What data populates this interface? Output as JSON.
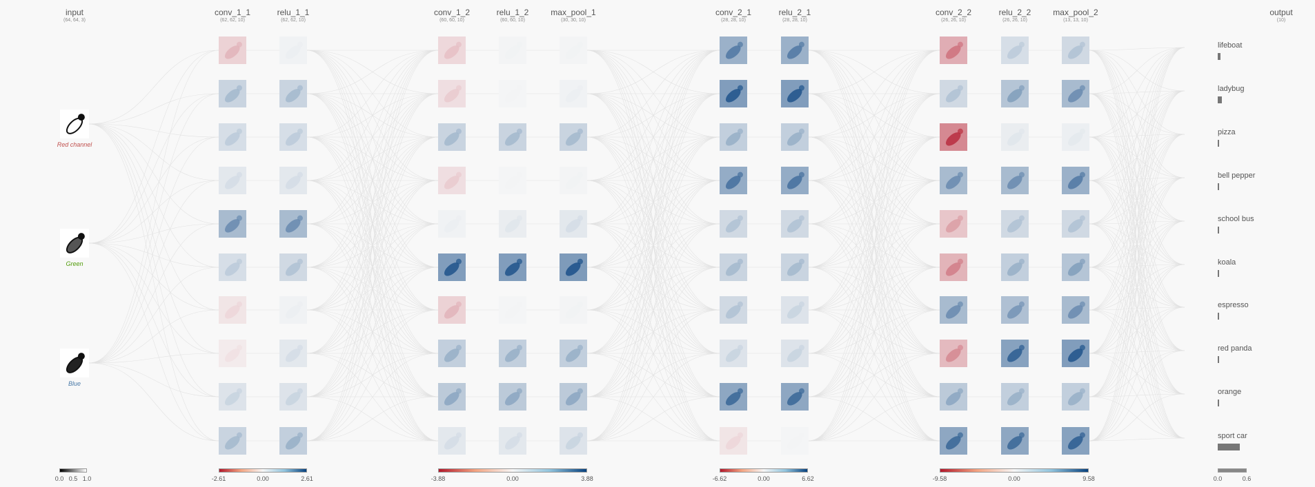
{
  "input": {
    "name": "input",
    "shape": "(64, 64, 3)",
    "channels": [
      {
        "label": "Red channel",
        "color": "#c0504d"
      },
      {
        "label": "Green",
        "color": "#4e9a06"
      },
      {
        "label": "Blue",
        "color": "#4a7aa8"
      }
    ],
    "legend": {
      "ticks": [
        "0.0",
        "0.5",
        "1.0"
      ]
    }
  },
  "layers": [
    {
      "name": "conv_1_1",
      "shape": "(62, 62, 10)",
      "values": [
        -0.3,
        0.35,
        0.25,
        0.15,
        0.6,
        0.25,
        -0.15,
        -0.1,
        0.2,
        0.35
      ]
    },
    {
      "name": "relu_1_1",
      "shape": "(62, 62, 10)",
      "values": [
        0.05,
        0.35,
        0.25,
        0.15,
        0.6,
        0.3,
        0.05,
        0.15,
        0.2,
        0.4
      ]
    },
    {
      "name": "conv_1_2",
      "shape": "(60, 60, 10)",
      "values": [
        -0.25,
        -0.2,
        0.35,
        -0.2,
        0.05,
        0.9,
        -0.3,
        0.4,
        0.45,
        0.15
      ]
    },
    {
      "name": "relu_1_2",
      "shape": "(60, 60, 10)",
      "values": [
        0.03,
        0.02,
        0.35,
        0.02,
        0.1,
        0.9,
        0.02,
        0.4,
        0.45,
        0.15
      ]
    },
    {
      "name": "max_pool_1",
      "shape": "(30, 30, 10)",
      "values": [
        0.03,
        0.05,
        0.35,
        0.03,
        0.15,
        0.92,
        0.03,
        0.4,
        0.45,
        0.2
      ]
    },
    {
      "name": "conv_2_1",
      "shape": "(28, 28, 10)",
      "values": [
        0.7,
        0.9,
        0.4,
        0.75,
        0.3,
        0.35,
        0.3,
        0.2,
        0.8,
        -0.15
      ]
    },
    {
      "name": "relu_2_1",
      "shape": "(28, 28, 10)",
      "values": [
        0.7,
        0.9,
        0.4,
        0.75,
        0.3,
        0.35,
        0.2,
        0.2,
        0.8,
        0.02
      ]
    },
    {
      "name": "conv_2_2",
      "shape": "(26, 26, 10)",
      "values": [
        -0.6,
        0.3,
        -0.9,
        0.6,
        -0.4,
        -0.55,
        0.6,
        -0.5,
        0.45,
        0.8
      ]
    },
    {
      "name": "relu_2_2",
      "shape": "(26, 26, 10)",
      "values": [
        0.25,
        0.5,
        0.1,
        0.6,
        0.3,
        0.4,
        0.55,
        0.85,
        0.4,
        0.8
      ]
    },
    {
      "name": "max_pool_2",
      "shape": "(13, 13, 10)",
      "values": [
        0.3,
        0.6,
        0.08,
        0.7,
        0.3,
        0.5,
        0.6,
        0.9,
        0.4,
        0.85
      ]
    }
  ],
  "output": {
    "name": "output",
    "shape": "(10)",
    "classes": [
      {
        "label": "lifeboat",
        "prob": 0.06
      },
      {
        "label": "ladybug",
        "prob": 0.09
      },
      {
        "label": "pizza",
        "prob": 0.01
      },
      {
        "label": "bell pepper",
        "prob": 0.01
      },
      {
        "label": "school bus",
        "prob": 0.01
      },
      {
        "label": "koala",
        "prob": 0.0
      },
      {
        "label": "espresso",
        "prob": 0.01
      },
      {
        "label": "red panda",
        "prob": 0.0
      },
      {
        "label": "orange",
        "prob": 0.03
      },
      {
        "label": "sport car",
        "prob": 0.46
      }
    ],
    "legend": {
      "ticks": [
        "0.0",
        "0.6"
      ]
    }
  },
  "color_legends": [
    {
      "layers": [
        "conv_1_1",
        "relu_1_1"
      ],
      "ticks": [
        "-2.61",
        "0.00",
        "2.61"
      ]
    },
    {
      "layers": [
        "conv_1_2",
        "relu_1_2",
        "max_pool_1"
      ],
      "ticks": [
        "-3.88",
        "0.00",
        "3.88"
      ]
    },
    {
      "layers": [
        "conv_2_1",
        "relu_2_1"
      ],
      "ticks": [
        "-6.62",
        "0.00",
        "6.62"
      ]
    },
    {
      "layers": [
        "conv_2_2",
        "relu_2_2",
        "max_pool_2"
      ],
      "ticks": [
        "-9.58",
        "0.00",
        "9.58"
      ]
    }
  ],
  "colors": {
    "negative": "#b2182b",
    "neutral": "#f7f7f7",
    "positive": "#08427f"
  }
}
